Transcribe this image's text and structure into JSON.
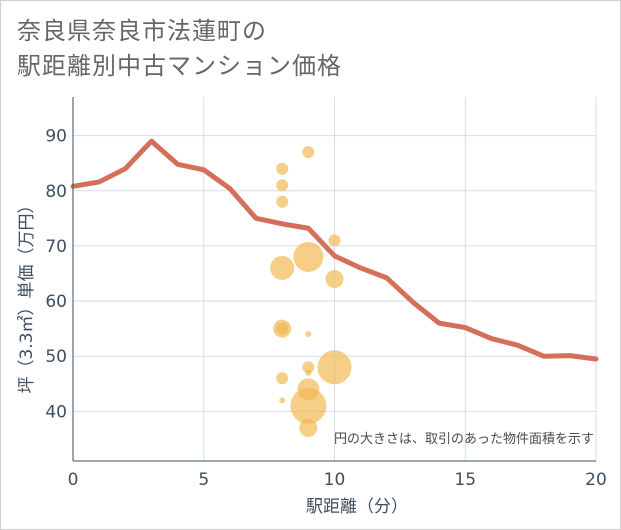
{
  "title": {
    "line1": "奈良県奈良市法蓮町の",
    "line2": "駅距離別中古マンション価格"
  },
  "chart_data": {
    "type": "line+bubble",
    "xlabel": "駅距離（分）",
    "ylabel": "坪（3.3㎡）単価（万円）",
    "xlim": [
      0,
      20
    ],
    "ylim": [
      31,
      97
    ],
    "x_ticks": [
      0,
      5,
      10,
      15,
      20
    ],
    "y_ticks": [
      40,
      50,
      60,
      70,
      80,
      90
    ],
    "grid": "both",
    "note": "円の大きさは、取引のあった物件面積を示す",
    "colors": {
      "line": "#d4705a",
      "bubble": "#f2b74f",
      "grid": "#d6dde6"
    },
    "line": {
      "x": [
        0,
        1,
        2,
        3,
        4,
        5,
        6,
        7,
        8,
        9,
        10,
        11,
        12,
        13,
        14,
        15,
        16,
        17,
        18,
        19,
        20
      ],
      "y": [
        80.8,
        81.6,
        84,
        89,
        84.8,
        83.8,
        80.4,
        75,
        74,
        73.2,
        68.2,
        66,
        64.2,
        59.8,
        56,
        55.2,
        53.2,
        52,
        50,
        50.1,
        49.5
      ]
    },
    "bubbles": [
      {
        "x": 9,
        "y": 87,
        "size": 6
      },
      {
        "x": 8,
        "y": 84,
        "size": 6
      },
      {
        "x": 8,
        "y": 81,
        "size": 6
      },
      {
        "x": 8,
        "y": 78,
        "size": 6
      },
      {
        "x": 10,
        "y": 71,
        "size": 6
      },
      {
        "x": 9,
        "y": 68,
        "size": 15
      },
      {
        "x": 8,
        "y": 66,
        "size": 12
      },
      {
        "x": 10,
        "y": 64,
        "size": 9
      },
      {
        "x": 8,
        "y": 55,
        "size": 9
      },
      {
        "x": 8,
        "y": 55,
        "size": 6
      },
      {
        "x": 9,
        "y": 54,
        "size": 3
      },
      {
        "x": 10,
        "y": 48,
        "size": 17
      },
      {
        "x": 9,
        "y": 48,
        "size": 6
      },
      {
        "x": 9,
        "y": 47,
        "size": 3
      },
      {
        "x": 8,
        "y": 46,
        "size": 6
      },
      {
        "x": 9,
        "y": 44,
        "size": 11
      },
      {
        "x": 8,
        "y": 42,
        "size": 3
      },
      {
        "x": 9,
        "y": 41,
        "size": 18
      },
      {
        "x": 9,
        "y": 37,
        "size": 9
      }
    ]
  }
}
